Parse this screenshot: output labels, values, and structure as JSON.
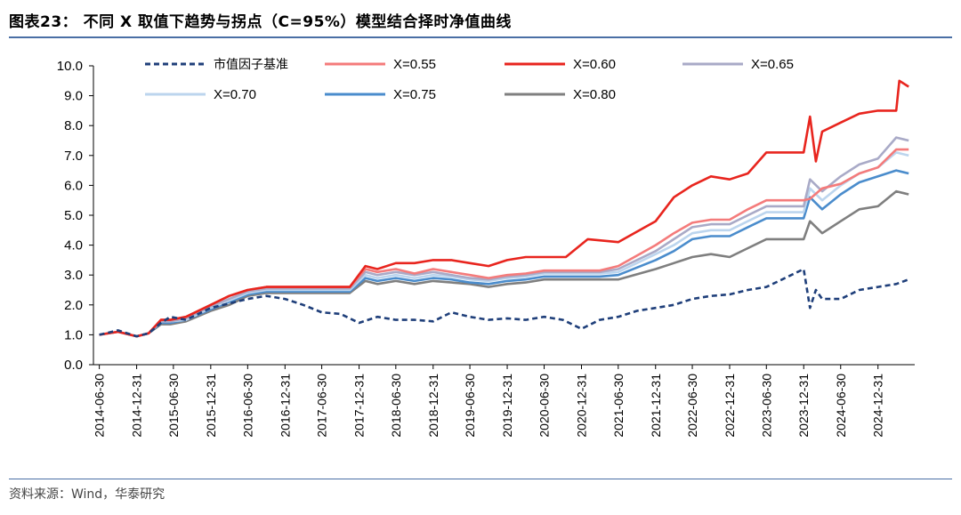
{
  "header": {
    "title": "图表23： 不同 X 取值下趋势与拐点（C=95%）模型结合择时净值曲线"
  },
  "footer": {
    "source": "资料来源：Wind，华泰研究"
  },
  "chart_data": {
    "type": "line",
    "title": "",
    "xlabel": "",
    "ylabel": "",
    "ylim": [
      0,
      10
    ],
    "yticks": [
      "0.0",
      "1.0",
      "2.0",
      "3.0",
      "4.0",
      "5.0",
      "6.0",
      "7.0",
      "8.0",
      "9.0",
      "10.0"
    ],
    "xticks": [
      "2014-06-30",
      "2014-12-31",
      "2015-06-30",
      "2015-12-31",
      "2016-06-30",
      "2016-12-31",
      "2017-06-30",
      "2017-12-31",
      "2018-06-30",
      "2018-12-31",
      "2019-06-30",
      "2019-12-31",
      "2020-06-30",
      "2020-12-31",
      "2021-06-30",
      "2021-12-31",
      "2022-06-30",
      "2022-12-31",
      "2023-06-30",
      "2023-12-31",
      "2024-06-30",
      "2024-12-31"
    ],
    "grid": false,
    "legend": "top",
    "series": [
      {
        "name": "市值因子基准",
        "color": "#1f3f7a",
        "dash": "dashed",
        "x": [
          "2014-06-30",
          "2014-09-30",
          "2014-12-31",
          "2015-02-28",
          "2015-04-30",
          "2015-06-15",
          "2015-08-31",
          "2015-12-31",
          "2016-03-31",
          "2016-06-30",
          "2016-09-30",
          "2016-12-31",
          "2017-03-31",
          "2017-06-30",
          "2017-09-30",
          "2017-12-31",
          "2018-03-31",
          "2018-06-30",
          "2018-09-30",
          "2018-12-31",
          "2019-03-31",
          "2019-06-30",
          "2019-09-30",
          "2019-12-31",
          "2020-03-31",
          "2020-06-30",
          "2020-09-30",
          "2020-12-31",
          "2021-03-31",
          "2021-06-30",
          "2021-09-30",
          "2021-12-31",
          "2022-03-31",
          "2022-06-30",
          "2022-09-30",
          "2022-12-31",
          "2023-03-31",
          "2023-06-30",
          "2023-09-30",
          "2023-12-31",
          "2024-01-31",
          "2024-02-29",
          "2024-03-31",
          "2024-06-30",
          "2024-09-30",
          "2024-12-31",
          "2025-03-31",
          "2025-05-31"
        ],
        "values": [
          1.0,
          1.15,
          0.95,
          1.05,
          1.4,
          1.6,
          1.5,
          1.9,
          2.05,
          2.2,
          2.3,
          2.2,
          2.0,
          1.75,
          1.7,
          1.4,
          1.6,
          1.5,
          1.5,
          1.45,
          1.75,
          1.6,
          1.5,
          1.55,
          1.5,
          1.6,
          1.5,
          1.2,
          1.5,
          1.6,
          1.8,
          1.9,
          2.0,
          2.2,
          2.3,
          2.35,
          2.5,
          2.6,
          2.9,
          3.2,
          1.9,
          2.5,
          2.2,
          2.2,
          2.5,
          2.6,
          2.7,
          2.85
        ]
      },
      {
        "name": "X=0.55",
        "color": "#f47b7b",
        "x": [
          "2014-06-30",
          "2014-09-30",
          "2014-12-31",
          "2015-02-28",
          "2015-04-30",
          "2015-06-15",
          "2015-08-31",
          "2015-12-31",
          "2016-03-31",
          "2016-06-30",
          "2016-09-30",
          "2017-11-15",
          "2018-01-31",
          "2018-03-31",
          "2018-06-30",
          "2018-09-30",
          "2018-12-31",
          "2019-03-31",
          "2019-06-30",
          "2019-09-30",
          "2019-12-31",
          "2020-03-31",
          "2020-06-30",
          "2020-12-31",
          "2021-03-31",
          "2021-06-30",
          "2021-12-31",
          "2022-03-31",
          "2022-06-30",
          "2022-09-30",
          "2022-12-31",
          "2023-03-31",
          "2023-06-30",
          "2023-12-31",
          "2024-01-31",
          "2024-03-31",
          "2024-06-30",
          "2024-09-30",
          "2024-12-31",
          "2025-03-31",
          "2025-05-31"
        ],
        "values": [
          1.0,
          1.1,
          0.95,
          1.05,
          1.5,
          1.5,
          1.6,
          2.0,
          2.3,
          2.5,
          2.6,
          2.6,
          3.2,
          3.1,
          3.2,
          3.05,
          3.2,
          3.1,
          3.0,
          2.9,
          3.0,
          3.05,
          3.15,
          3.15,
          3.15,
          3.3,
          4.0,
          4.4,
          4.75,
          4.85,
          4.85,
          5.2,
          5.5,
          5.5,
          5.55,
          5.9,
          6.05,
          6.4,
          6.6,
          7.2,
          7.2
        ]
      },
      {
        "name": "X=0.60",
        "color": "#e8251e",
        "x": [
          "2014-06-30",
          "2014-09-30",
          "2014-12-31",
          "2015-02-28",
          "2015-04-30",
          "2015-06-15",
          "2015-08-31",
          "2015-12-31",
          "2016-03-31",
          "2016-06-30",
          "2016-09-30",
          "2017-11-15",
          "2018-01-31",
          "2018-03-31",
          "2018-06-30",
          "2018-09-30",
          "2018-12-31",
          "2019-03-31",
          "2019-06-30",
          "2019-09-30",
          "2019-12-31",
          "2020-03-31",
          "2020-06-30",
          "2020-10-15",
          "2021-01-31",
          "2021-06-30",
          "2021-12-31",
          "2022-03-31",
          "2022-06-30",
          "2022-09-30",
          "2022-12-31",
          "2023-03-31",
          "2023-06-30",
          "2023-12-31",
          "2024-01-31",
          "2024-02-29",
          "2024-03-31",
          "2024-06-30",
          "2024-09-30",
          "2024-12-31",
          "2025-03-31",
          "2025-04-15",
          "2025-05-31"
        ],
        "values": [
          1.0,
          1.1,
          0.95,
          1.05,
          1.5,
          1.5,
          1.6,
          2.0,
          2.3,
          2.5,
          2.6,
          2.6,
          3.3,
          3.2,
          3.4,
          3.4,
          3.5,
          3.5,
          3.4,
          3.3,
          3.5,
          3.6,
          3.6,
          3.6,
          4.2,
          4.1,
          4.8,
          5.6,
          6.0,
          6.3,
          6.2,
          6.4,
          7.1,
          7.1,
          8.3,
          6.8,
          7.8,
          8.1,
          8.4,
          8.5,
          8.5,
          9.5,
          9.3
        ]
      },
      {
        "name": "X=0.65",
        "color": "#a9aac7",
        "x": [
          "2014-06-30",
          "2014-09-30",
          "2014-12-31",
          "2015-02-28",
          "2015-04-30",
          "2015-06-15",
          "2015-08-31",
          "2015-12-31",
          "2016-03-31",
          "2016-06-30",
          "2016-09-30",
          "2017-11-15",
          "2018-01-31",
          "2018-03-31",
          "2018-06-30",
          "2018-09-30",
          "2018-12-31",
          "2019-03-31",
          "2019-06-30",
          "2019-09-30",
          "2019-12-31",
          "2020-03-31",
          "2020-06-30",
          "2020-12-31",
          "2021-03-31",
          "2021-06-30",
          "2021-12-31",
          "2022-03-31",
          "2022-06-30",
          "2022-09-30",
          "2022-12-31",
          "2023-03-31",
          "2023-06-30",
          "2023-12-31",
          "2024-01-31",
          "2024-03-31",
          "2024-06-30",
          "2024-09-30",
          "2024-12-31",
          "2025-03-31",
          "2025-05-31"
        ],
        "values": [
          1.0,
          1.1,
          0.95,
          1.05,
          1.45,
          1.45,
          1.55,
          1.95,
          2.2,
          2.45,
          2.55,
          2.55,
          3.1,
          3.0,
          3.1,
          3.0,
          3.1,
          3.0,
          2.9,
          2.85,
          2.95,
          3.0,
          3.1,
          3.1,
          3.1,
          3.2,
          3.8,
          4.2,
          4.6,
          4.7,
          4.7,
          5.0,
          5.3,
          5.3,
          6.2,
          5.8,
          6.3,
          6.7,
          6.9,
          7.6,
          7.5
        ]
      },
      {
        "name": "X=0.70",
        "color": "#bcd5ee",
        "x": [
          "2014-06-30",
          "2014-09-30",
          "2014-12-31",
          "2015-02-28",
          "2015-04-30",
          "2015-06-15",
          "2015-08-31",
          "2015-12-31",
          "2016-03-31",
          "2016-06-30",
          "2016-09-30",
          "2017-11-15",
          "2018-01-31",
          "2018-03-31",
          "2018-06-30",
          "2018-09-30",
          "2018-12-31",
          "2019-03-31",
          "2019-06-30",
          "2019-09-30",
          "2019-12-31",
          "2020-03-31",
          "2020-06-30",
          "2020-12-31",
          "2021-03-31",
          "2021-06-30",
          "2021-12-31",
          "2022-03-31",
          "2022-06-30",
          "2022-09-30",
          "2022-12-31",
          "2023-03-31",
          "2023-06-30",
          "2023-12-31",
          "2024-01-31",
          "2024-03-31",
          "2024-06-30",
          "2024-09-30",
          "2024-12-31",
          "2025-03-31",
          "2025-05-31"
        ],
        "values": [
          1.0,
          1.1,
          0.95,
          1.05,
          1.45,
          1.45,
          1.5,
          1.9,
          2.15,
          2.4,
          2.5,
          2.5,
          3.0,
          2.9,
          3.0,
          2.9,
          3.0,
          2.95,
          2.85,
          2.8,
          2.9,
          2.95,
          3.05,
          3.05,
          3.05,
          3.1,
          3.7,
          4.0,
          4.4,
          4.5,
          4.5,
          4.8,
          5.1,
          5.1,
          5.9,
          5.5,
          6.0,
          6.4,
          6.6,
          7.1,
          7.0
        ]
      },
      {
        "name": "X=0.75",
        "color": "#4a8ccc",
        "x": [
          "2014-06-30",
          "2014-09-30",
          "2014-12-31",
          "2015-02-28",
          "2015-04-30",
          "2015-06-15",
          "2015-08-31",
          "2015-12-31",
          "2016-03-31",
          "2016-06-30",
          "2016-09-30",
          "2017-11-15",
          "2018-01-31",
          "2018-03-31",
          "2018-06-30",
          "2018-09-30",
          "2018-12-31",
          "2019-03-31",
          "2019-06-30",
          "2019-09-30",
          "2019-12-31",
          "2020-03-31",
          "2020-06-30",
          "2020-12-31",
          "2021-03-31",
          "2021-06-30",
          "2021-12-31",
          "2022-03-31",
          "2022-06-30",
          "2022-09-30",
          "2022-12-31",
          "2023-03-31",
          "2023-06-30",
          "2023-12-31",
          "2024-01-31",
          "2024-03-31",
          "2024-06-30",
          "2024-09-30",
          "2024-12-31",
          "2025-03-31",
          "2025-05-31"
        ],
        "values": [
          1.0,
          1.1,
          0.95,
          1.05,
          1.4,
          1.4,
          1.5,
          1.85,
          2.1,
          2.35,
          2.45,
          2.45,
          2.9,
          2.8,
          2.9,
          2.8,
          2.9,
          2.85,
          2.75,
          2.7,
          2.8,
          2.85,
          2.95,
          2.95,
          2.95,
          3.0,
          3.5,
          3.8,
          4.2,
          4.3,
          4.3,
          4.6,
          4.9,
          4.9,
          5.6,
          5.2,
          5.7,
          6.1,
          6.3,
          6.5,
          6.4
        ]
      },
      {
        "name": "X=0.80",
        "color": "#7f7f7f",
        "x": [
          "2014-06-30",
          "2014-09-30",
          "2014-12-31",
          "2015-02-28",
          "2015-04-30",
          "2015-06-15",
          "2015-08-31",
          "2015-12-31",
          "2016-03-31",
          "2016-06-30",
          "2016-09-30",
          "2017-11-15",
          "2018-01-31",
          "2018-03-31",
          "2018-06-30",
          "2018-09-30",
          "2018-12-31",
          "2019-03-31",
          "2019-06-30",
          "2019-09-30",
          "2019-12-31",
          "2020-03-31",
          "2020-06-30",
          "2020-12-31",
          "2021-03-31",
          "2021-06-30",
          "2021-12-31",
          "2022-03-31",
          "2022-06-30",
          "2022-09-30",
          "2022-12-31",
          "2023-03-31",
          "2023-06-30",
          "2023-12-31",
          "2024-01-31",
          "2024-03-31",
          "2024-06-30",
          "2024-09-30",
          "2024-12-31",
          "2025-03-31",
          "2025-05-31"
        ],
        "values": [
          1.0,
          1.1,
          0.95,
          1.05,
          1.35,
          1.35,
          1.45,
          1.8,
          2.0,
          2.3,
          2.4,
          2.4,
          2.8,
          2.7,
          2.8,
          2.7,
          2.8,
          2.75,
          2.7,
          2.6,
          2.7,
          2.75,
          2.85,
          2.85,
          2.85,
          2.85,
          3.2,
          3.4,
          3.6,
          3.7,
          3.6,
          3.9,
          4.2,
          4.2,
          4.8,
          4.4,
          4.8,
          5.2,
          5.3,
          5.8,
          5.7
        ]
      }
    ]
  }
}
